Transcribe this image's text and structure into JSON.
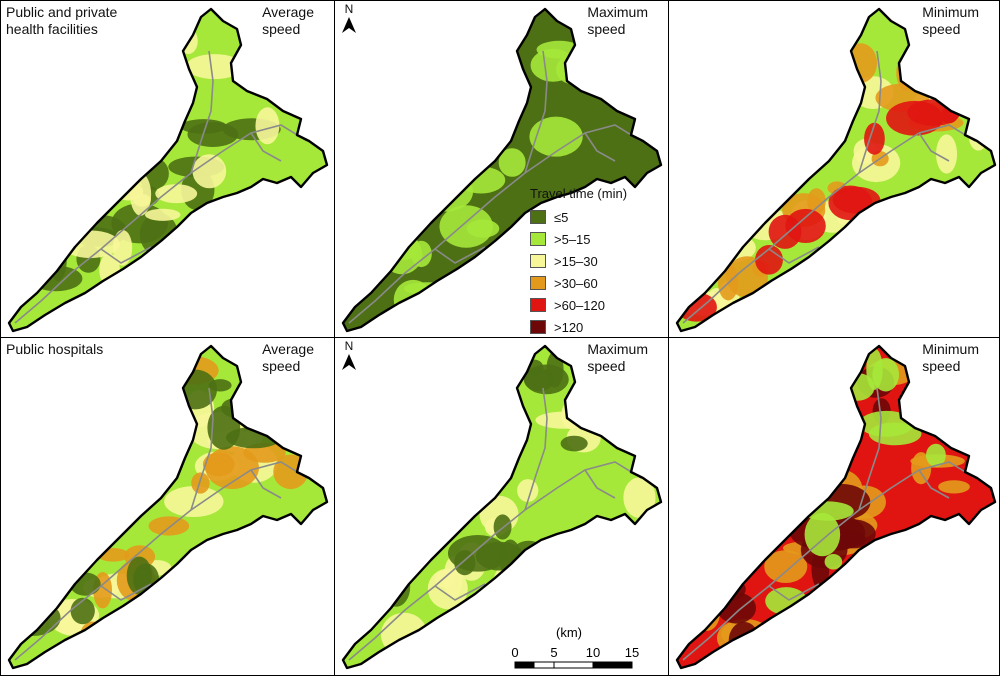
{
  "rows": [
    {
      "label": "Public and private\nhealth facilities"
    },
    {
      "label": "Public hospitals"
    }
  ],
  "speeds": [
    "Average\nspeed",
    "Maximum\nspeed",
    "Minimum\nspeed"
  ],
  "north_label": "N",
  "legend": {
    "title": "Travel time (min)",
    "items": [
      {
        "label": "≤5",
        "color": "#4d7014"
      },
      {
        "label": ">5–15",
        "color": "#a6e83a"
      },
      {
        "label": ">15–30",
        "color": "#f7f79a"
      },
      {
        "label": ">30–60",
        "color": "#e39a1c"
      },
      {
        "label": ">60–120",
        "color": "#e01512"
      },
      {
        "label": ">120",
        "color": "#6e0808"
      }
    ]
  },
  "scalebar": {
    "unit": "(km)",
    "ticks": [
      "0",
      "5",
      "10",
      "15"
    ]
  },
  "maps": [
    {
      "base": ">5–15",
      "mix": [
        "≤5",
        ">15–30"
      ]
    },
    {
      "base": "≤5",
      "mix": [
        ">5–15"
      ]
    },
    {
      "base": ">5–15",
      "mix": [
        ">15–30",
        ">30–60",
        ">60–120"
      ]
    },
    {
      "base": ">5–15",
      "mix": [
        ">15–30",
        ">30–60",
        "≤5"
      ]
    },
    {
      "base": ">5–15",
      "mix": [
        ">15–30",
        "≤5"
      ]
    },
    {
      "base": ">60–120",
      "mix": [
        ">30–60",
        ">120",
        ">5–15"
      ]
    }
  ]
}
